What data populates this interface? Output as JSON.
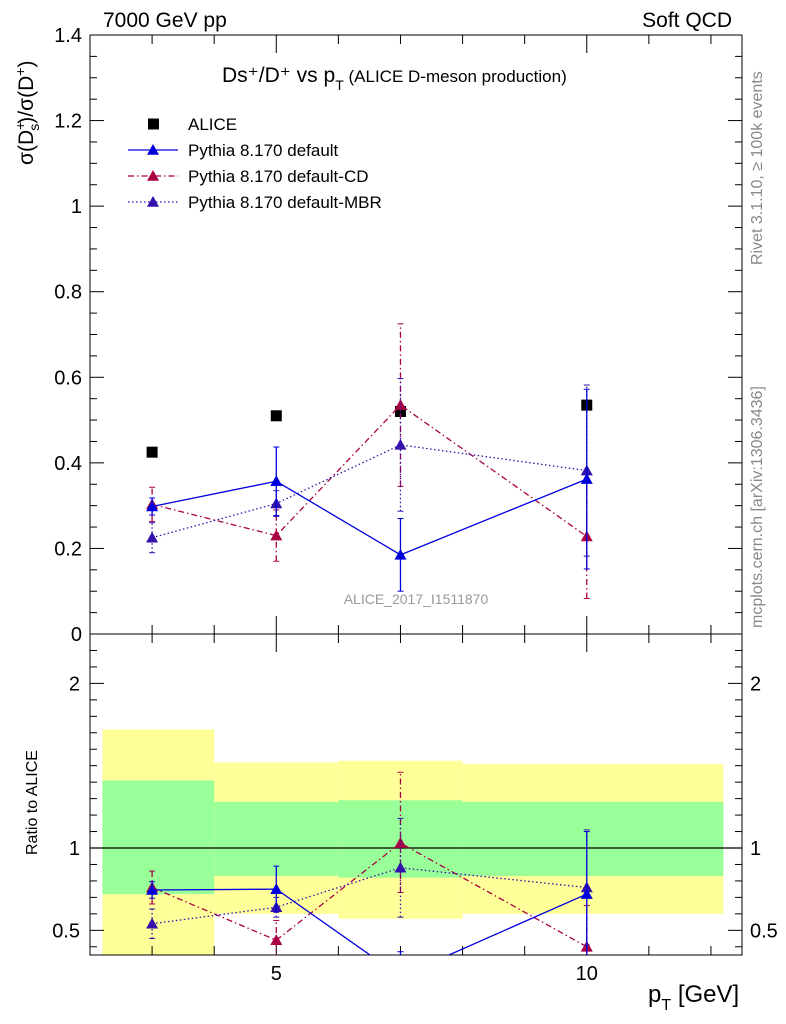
{
  "header": {
    "left": "7000 GeV pp",
    "right": "Soft QCD"
  },
  "side_text": {
    "rivet": "Rivet 3.1.10, ≥ 100k events",
    "source": "mcplots.cern.ch [arXiv:1306.3436]"
  },
  "watermark": "ALICE_2017_I1511870",
  "colors": {
    "alice": "#000000",
    "default": "#0000dd",
    "cd": "#aa0044",
    "mbr": "#3311aa",
    "band_green": "#99ff99",
    "band_yellow": "#ffff99"
  },
  "chart_data": [
    {
      "type": "line",
      "title": "Ds⁺/D⁺ vs p_T (ALICE D-meson production)",
      "title_main": "Ds⁺/D⁺ vs p",
      "title_sub": "T",
      "title_note": "(ALICE D-meson production)",
      "ylabel": "σ(D⁺_s)/σ(D⁺)",
      "xlim": [
        2,
        12.5
      ],
      "ylim": [
        0,
        1.4
      ],
      "y_ticks": [
        "0",
        "0.2",
        "0.4",
        "0.6",
        "0.8",
        "1",
        "1.2",
        "1.4"
      ],
      "legend_position": "top-left",
      "legend": [
        {
          "key": "alice",
          "label": "ALICE"
        },
        {
          "key": "default",
          "label": "Pythia 8.170 default"
        },
        {
          "key": "cd",
          "label": "Pythia 8.170 default-CD"
        },
        {
          "key": "mbr",
          "label": "Pythia 8.170 default-MBR"
        }
      ],
      "alice": {
        "x": [
          3,
          5,
          7,
          10
        ],
        "y": [
          0.425,
          0.51,
          0.52,
          0.535
        ],
        "bins": [
          [
            2,
            4
          ],
          [
            4,
            6
          ],
          [
            6,
            8
          ],
          [
            8,
            12
          ]
        ]
      },
      "series": [
        {
          "key": "default",
          "x": [
            3,
            5,
            7,
            10
          ],
          "y": [
            0.298,
            0.357,
            0.185,
            0.362
          ],
          "err_lo": [
            0.02,
            0.08,
            0.085,
            0.21
          ],
          "err_hi": [
            0.02,
            0.08,
            0.085,
            0.21
          ]
        },
        {
          "key": "cd",
          "x": [
            3,
            5,
            7,
            10
          ],
          "y": [
            0.303,
            0.23,
            0.535,
            0.228
          ],
          "err_lo": [
            0.04,
            0.06,
            0.19,
            0.145
          ],
          "err_hi": [
            0.04,
            0.06,
            0.19,
            0.145
          ]
        },
        {
          "key": "mbr",
          "x": [
            3,
            5,
            7,
            10
          ],
          "y": [
            0.225,
            0.305,
            0.442,
            0.382
          ],
          "err_lo": [
            0.035,
            0.03,
            0.155,
            0.2
          ],
          "err_hi": [
            0.035,
            0.03,
            0.155,
            0.2
          ]
        }
      ]
    },
    {
      "type": "line",
      "ylabel": "Ratio to ALICE",
      "xlabel": "p_T [GeV]",
      "xlabel_main": "p",
      "xlabel_sub": "T",
      "xlabel_unit": "[GeV]",
      "xlim": [
        2,
        12.5
      ],
      "ylim": [
        0.35,
        2.3
      ],
      "y_ticks": [
        {
          "v": 0.5,
          "label": "0.5"
        },
        {
          "v": 1,
          "label": "1"
        },
        {
          "v": 2,
          "label": "2"
        }
      ],
      "x_ticks": [
        {
          "v": 5,
          "label": "5"
        },
        {
          "v": 10,
          "label": "10"
        }
      ],
      "bands": [
        {
          "x0": 2.2,
          "x1": 4,
          "green": [
            0.72,
            1.41
          ],
          "yellow": [
            0.35,
            1.72
          ]
        },
        {
          "x0": 4,
          "x1": 6,
          "green": [
            0.83,
            1.28
          ],
          "yellow": [
            0.6,
            1.52
          ]
        },
        {
          "x0": 6,
          "x1": 8,
          "green": [
            0.82,
            1.29
          ],
          "yellow": [
            0.57,
            1.53
          ]
        },
        {
          "x0": 8,
          "x1": 12.2,
          "green": [
            0.83,
            1.28
          ],
          "yellow": [
            0.6,
            1.51
          ]
        }
      ],
      "series": [
        {
          "key": "default",
          "x": [
            3,
            5,
            7,
            10
          ],
          "y": [
            0.745,
            0.75,
            0.22,
            0.72
          ],
          "err_lo": [
            0.05,
            0.14,
            0.15,
            0.38
          ],
          "err_hi": [
            0.05,
            0.14,
            0.15,
            0.38
          ]
        },
        {
          "key": "cd",
          "x": [
            3,
            5,
            7,
            10
          ],
          "y": [
            0.76,
            0.44,
            1.03,
            0.4
          ],
          "err_lo": [
            0.1,
            0.12,
            0.3,
            0.25
          ],
          "err_hi": [
            0.1,
            0.12,
            0.43,
            0.25
          ]
        },
        {
          "key": "mbr",
          "x": [
            3,
            5,
            7,
            10
          ],
          "y": [
            0.54,
            0.64,
            0.88,
            0.76
          ],
          "err_lo": [
            0.09,
            0.06,
            0.3,
            0.35
          ],
          "err_hi": [
            0.09,
            0.06,
            0.3,
            0.35
          ]
        }
      ]
    }
  ]
}
